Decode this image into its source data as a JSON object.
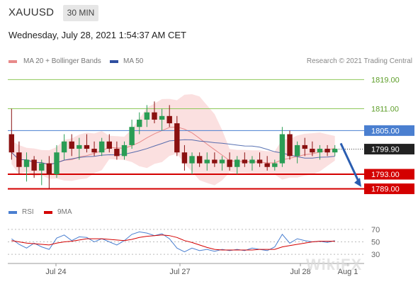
{
  "header": {
    "symbol": "XAUUSD",
    "timeframe": "30 MIN",
    "timestamp": "Wednesday, July 28, 2021 1:54:37 AM CET"
  },
  "legend": {
    "ma20_label": "MA 20 + Bollinger Bands",
    "ma50_label": "MA 50",
    "copyright": "Research © 2021 Trading Central"
  },
  "rsi_legend": {
    "rsi_label": "RSI",
    "ma_label": "9MA"
  },
  "watermark": "WikiFX",
  "colors": {
    "support": "#d40000",
    "pivot": "#4a7fd0",
    "resistance": "#8fc85a",
    "ma20": "#e88a8a",
    "ma50": "#2f4fa0",
    "candle_up": "#2a9d55",
    "candle_down": "#8a1010",
    "band_fill": "#f9d5d5"
  },
  "chart_data": [
    {
      "type": "candlestick",
      "title": "XAUUSD 30 MIN",
      "x_tick_labels": [
        "Jul 24",
        "Jul 27",
        "Jul 28",
        "Aug 1"
      ],
      "ylim": [
        1786,
        1822
      ],
      "price_levels": [
        {
          "value": 1819.0,
          "label": "1819.00",
          "kind": "resistance"
        },
        {
          "value": 1811.0,
          "label": "1811.00",
          "kind": "resistance"
        },
        {
          "value": 1805.0,
          "label": "1805.00",
          "kind": "pivot"
        },
        {
          "value": 1793.0,
          "label": "1793.00",
          "kind": "support"
        },
        {
          "value": 1789.0,
          "label": "1789.00",
          "kind": "support"
        }
      ],
      "last_price": {
        "value": 1799.9,
        "label": "1799.90"
      },
      "forecast_arrow": {
        "from": 1801.5,
        "to": 1789.5
      },
      "ohlc": [
        [
          1804,
          1811,
          1797,
          1799
        ],
        [
          1799,
          1802,
          1793,
          1795
        ],
        [
          1795,
          1799,
          1791,
          1797
        ],
        [
          1797,
          1798,
          1792,
          1794
        ],
        [
          1794,
          1797,
          1790,
          1796
        ],
        [
          1796,
          1798,
          1789,
          1793
        ],
        [
          1793,
          1801,
          1792,
          1799
        ],
        [
          1799,
          1804,
          1797,
          1802
        ],
        [
          1802,
          1804,
          1798,
          1800
        ],
        [
          1800,
          1803,
          1797,
          1801
        ],
        [
          1801,
          1804,
          1799,
          1800
        ],
        [
          1800,
          1802,
          1798,
          1799
        ],
        [
          1799,
          1803,
          1798,
          1802
        ],
        [
          1802,
          1804,
          1799,
          1800
        ],
        [
          1800,
          1802,
          1797,
          1798
        ],
        [
          1798,
          1802,
          1797,
          1801
        ],
        [
          1801,
          1808,
          1800,
          1806
        ],
        [
          1806,
          1810,
          1804,
          1808
        ],
        [
          1808,
          1812,
          1806,
          1810
        ],
        [
          1810,
          1813,
          1807,
          1808
        ],
        [
          1808,
          1811,
          1805,
          1809
        ],
        [
          1809,
          1812,
          1806,
          1807
        ],
        [
          1807,
          1809,
          1798,
          1799
        ],
        [
          1799,
          1801,
          1794,
          1796
        ],
        [
          1796,
          1799,
          1793,
          1798
        ],
        [
          1798,
          1799,
          1795,
          1796
        ],
        [
          1796,
          1799,
          1794,
          1797
        ],
        [
          1797,
          1799,
          1795,
          1796
        ],
        [
          1796,
          1798,
          1794,
          1797
        ],
        [
          1797,
          1799,
          1794,
          1795
        ],
        [
          1795,
          1798,
          1793,
          1797
        ],
        [
          1797,
          1799,
          1795,
          1796
        ],
        [
          1796,
          1798,
          1794,
          1797
        ],
        [
          1797,
          1799,
          1795,
          1796
        ],
        [
          1796,
          1798,
          1794,
          1795
        ],
        [
          1795,
          1797,
          1794,
          1796
        ],
        [
          1796,
          1806,
          1795,
          1804
        ],
        [
          1804,
          1805,
          1797,
          1798
        ],
        [
          1798,
          1802,
          1796,
          1801
        ],
        [
          1801,
          1803,
          1798,
          1800
        ],
        [
          1800,
          1802,
          1798,
          1799
        ],
        [
          1799,
          1801,
          1797,
          1800
        ],
        [
          1800,
          1801,
          1798,
          1799
        ],
        [
          1799,
          1801,
          1798,
          1800
        ]
      ]
    },
    {
      "type": "line",
      "title": "RSI",
      "ylim": [
        20,
        80
      ],
      "y_tick_labels": [
        "70",
        "50",
        "30"
      ],
      "series": [
        {
          "name": "RSI",
          "values": [
            55,
            46,
            40,
            48,
            42,
            38,
            56,
            61,
            52,
            58,
            57,
            50,
            55,
            50,
            45,
            52,
            62,
            66,
            64,
            60,
            63,
            55,
            40,
            34,
            40,
            36,
            38,
            35,
            38,
            36,
            38,
            36,
            40,
            38,
            36,
            42,
            62,
            48,
            55,
            52,
            50,
            51,
            49,
            52
          ]
        },
        {
          "name": "9MA",
          "values": [
            52,
            50,
            48,
            47,
            46,
            45,
            48,
            50,
            51,
            53,
            55,
            55,
            55,
            54,
            53,
            52,
            54,
            57,
            59,
            60,
            61,
            60,
            57,
            52,
            49,
            45,
            41,
            38,
            37,
            37,
            37,
            37,
            37,
            38,
            38,
            38,
            42,
            44,
            46,
            48,
            50,
            51,
            51,
            51
          ]
        }
      ]
    }
  ]
}
